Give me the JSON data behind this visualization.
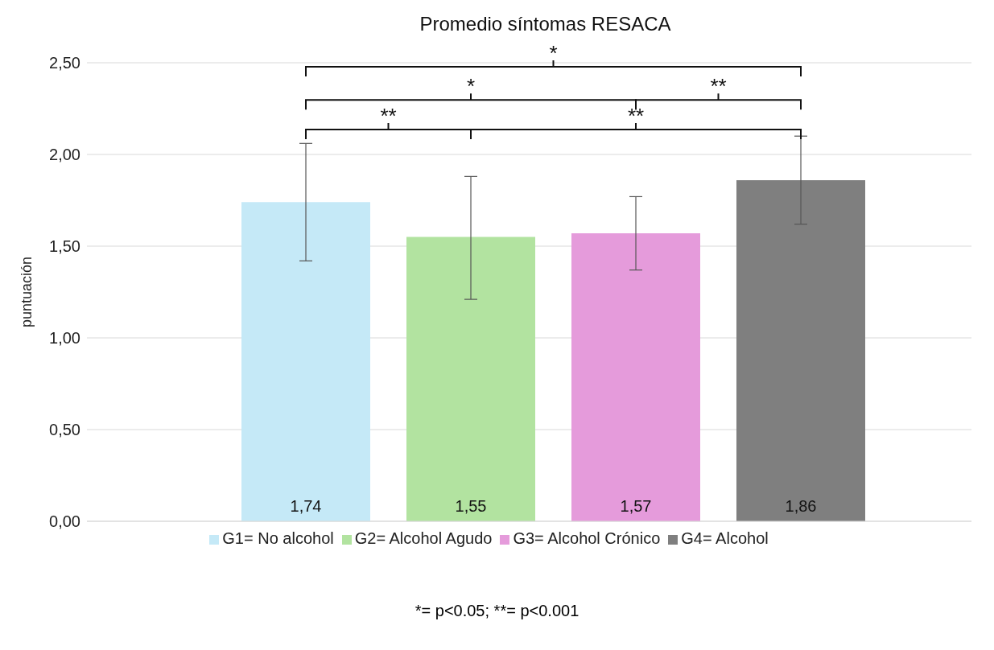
{
  "chart_data": {
    "type": "bar",
    "title": "Promedio síntomas RESACA",
    "ylabel": "puntuación",
    "categories": [
      null
    ],
    "series": [
      {
        "name": "G1= No alcohol",
        "color": "#c5e9f7",
        "values": [
          1.74
        ],
        "value_labels": [
          "1,74"
        ],
        "errors": [
          [
            1.42,
            2.06
          ]
        ]
      },
      {
        "name": "G2= Alcohol Agudo",
        "color": "#b2e3a0",
        "values": [
          1.55
        ],
        "value_labels": [
          "1,55"
        ],
        "errors": [
          [
            1.21,
            1.88
          ]
        ]
      },
      {
        "name": "G3= Alcohol Crónico",
        "color": "#e59bdb",
        "values": [
          1.57
        ],
        "value_labels": [
          "1,57"
        ],
        "errors": [
          [
            1.37,
            1.77
          ]
        ]
      },
      {
        "name": "G4= Alcohol",
        "color": "#7f7f7f",
        "values": [
          1.86
        ],
        "value_labels": [
          "1,86"
        ],
        "errors": [
          [
            1.62,
            2.1
          ]
        ]
      }
    ],
    "ylim": [
      0,
      2.5
    ],
    "yticks": [
      {
        "value": 0,
        "label": "0,00"
      },
      {
        "value": 0.5,
        "label": "0,50"
      },
      {
        "value": 1,
        "label": "1,00"
      },
      {
        "value": 1.5,
        "label": "1,50"
      },
      {
        "value": 2,
        "label": "2,00"
      },
      {
        "value": 2.5,
        "label": "2,50"
      }
    ],
    "grid": "y",
    "legend": "bottom",
    "tick_labels": "y",
    "annotations": [
      "*",
      "*",
      "**",
      "**",
      "**",
      "*= p<0.05; **= p<0.001"
    ]
  }
}
